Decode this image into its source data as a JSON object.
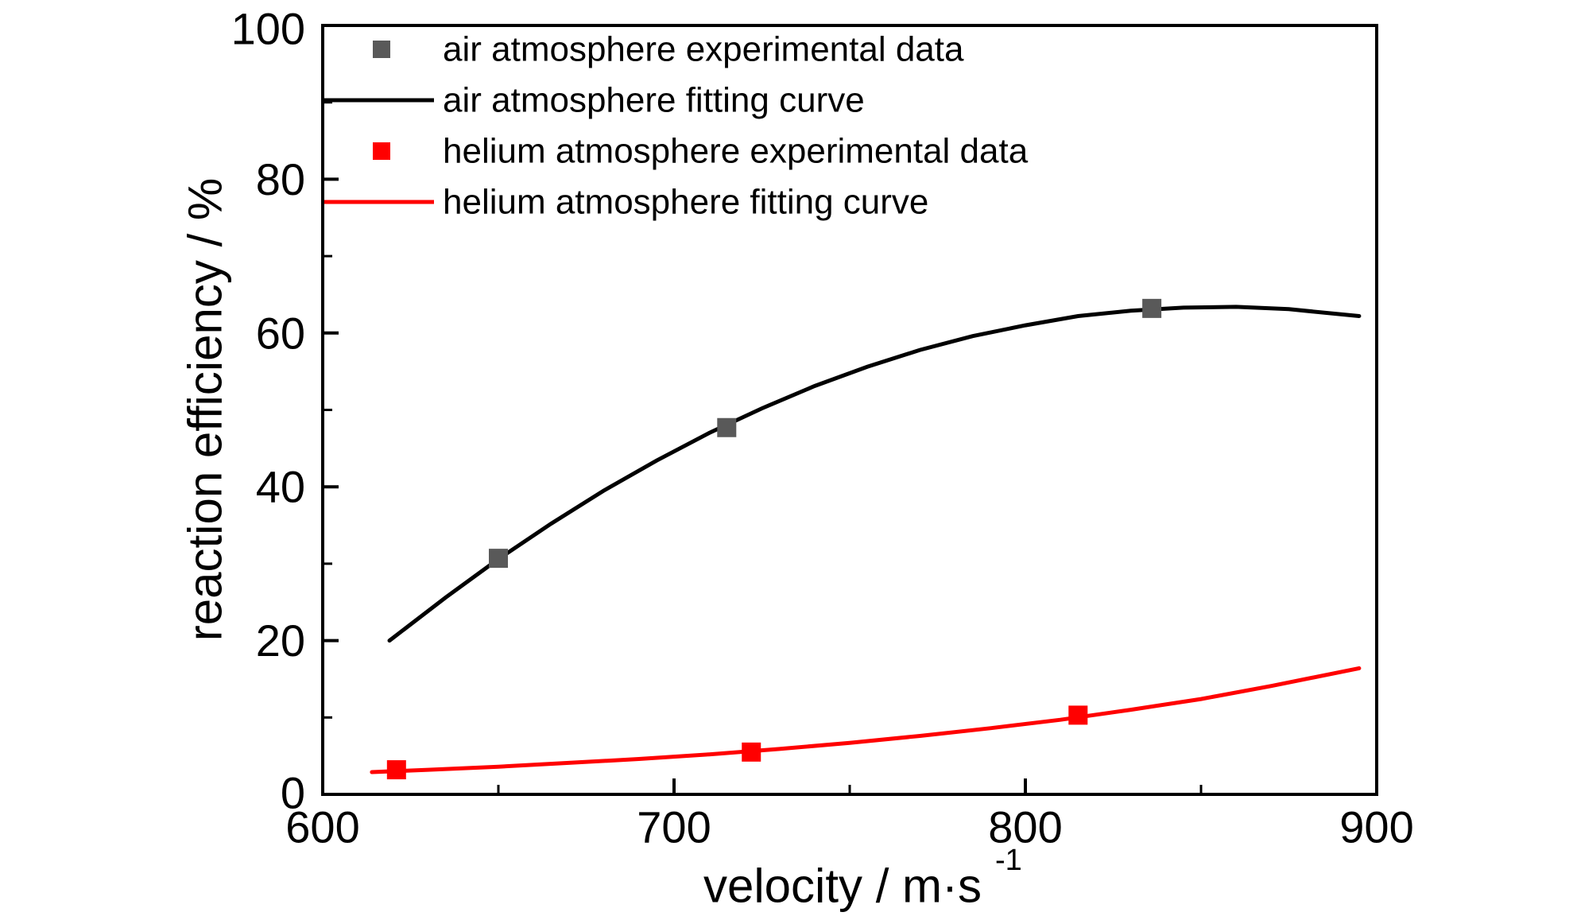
{
  "figure": {
    "background": "#ffffff",
    "axis_color": "#000000"
  },
  "chart_data": {
    "type": "line",
    "title": "",
    "xlabel": "velocity / m·s",
    "xlabel_superscript": "-1",
    "ylabel": "reaction efficiency / %",
    "xlim": [
      600,
      900
    ],
    "ylim": [
      0,
      100
    ],
    "x_major_ticks": [
      600,
      700,
      800,
      900
    ],
    "x_minor_ticks": [
      650,
      750,
      850
    ],
    "y_major_ticks": [
      0,
      20,
      40,
      60,
      80,
      100
    ],
    "y_minor_ticks": [
      10,
      30,
      50,
      70,
      90
    ],
    "grid": false,
    "legend_position": "top-left",
    "series": [
      {
        "name": "air atmosphere experimental data",
        "kind": "scatter",
        "marker": "square",
        "color": "#595959",
        "points": [
          [
            650,
            30.7
          ],
          [
            715,
            47.7
          ],
          [
            836,
            63.2
          ]
        ]
      },
      {
        "name": "air atmosphere fitting curve",
        "kind": "line",
        "color": "#000000",
        "points": [
          [
            619,
            20.0
          ],
          [
            635,
            25.6
          ],
          [
            650,
            30.6
          ],
          [
            665,
            35.2
          ],
          [
            680,
            39.5
          ],
          [
            695,
            43.4
          ],
          [
            710,
            47.0
          ],
          [
            725,
            50.2
          ],
          [
            740,
            53.1
          ],
          [
            755,
            55.6
          ],
          [
            770,
            57.8
          ],
          [
            785,
            59.6
          ],
          [
            800,
            61.0
          ],
          [
            815,
            62.2
          ],
          [
            830,
            62.9
          ],
          [
            845,
            63.3
          ],
          [
            860,
            63.4
          ],
          [
            875,
            63.1
          ],
          [
            895,
            62.2
          ]
        ]
      },
      {
        "name": "helium atmosphere experimental data",
        "kind": "scatter",
        "marker": "square",
        "color": "#ff0000",
        "points": [
          [
            621,
            3.2
          ],
          [
            722,
            5.5
          ],
          [
            815,
            10.3
          ]
        ]
      },
      {
        "name": "helium atmosphere fitting curve",
        "kind": "line",
        "color": "#ff0000",
        "points": [
          [
            614,
            2.9
          ],
          [
            630,
            3.2
          ],
          [
            650,
            3.6
          ],
          [
            670,
            4.1
          ],
          [
            690,
            4.6
          ],
          [
            710,
            5.2
          ],
          [
            730,
            5.9
          ],
          [
            750,
            6.7
          ],
          [
            770,
            7.6
          ],
          [
            790,
            8.6
          ],
          [
            810,
            9.7
          ],
          [
            830,
            11.0
          ],
          [
            850,
            12.4
          ],
          [
            870,
            14.1
          ],
          [
            895,
            16.4
          ]
        ]
      }
    ],
    "legend_entries": [
      {
        "label": "air atmosphere experimental data",
        "glyph": "square",
        "color": "#595959"
      },
      {
        "label": "air atmosphere fitting curve",
        "glyph": "line",
        "color": "#000000"
      },
      {
        "label": "helium atmosphere experimental data",
        "glyph": "square",
        "color": "#ff0000"
      },
      {
        "label": "helium atmosphere fitting curve",
        "glyph": "line",
        "color": "#ff0000"
      }
    ]
  }
}
